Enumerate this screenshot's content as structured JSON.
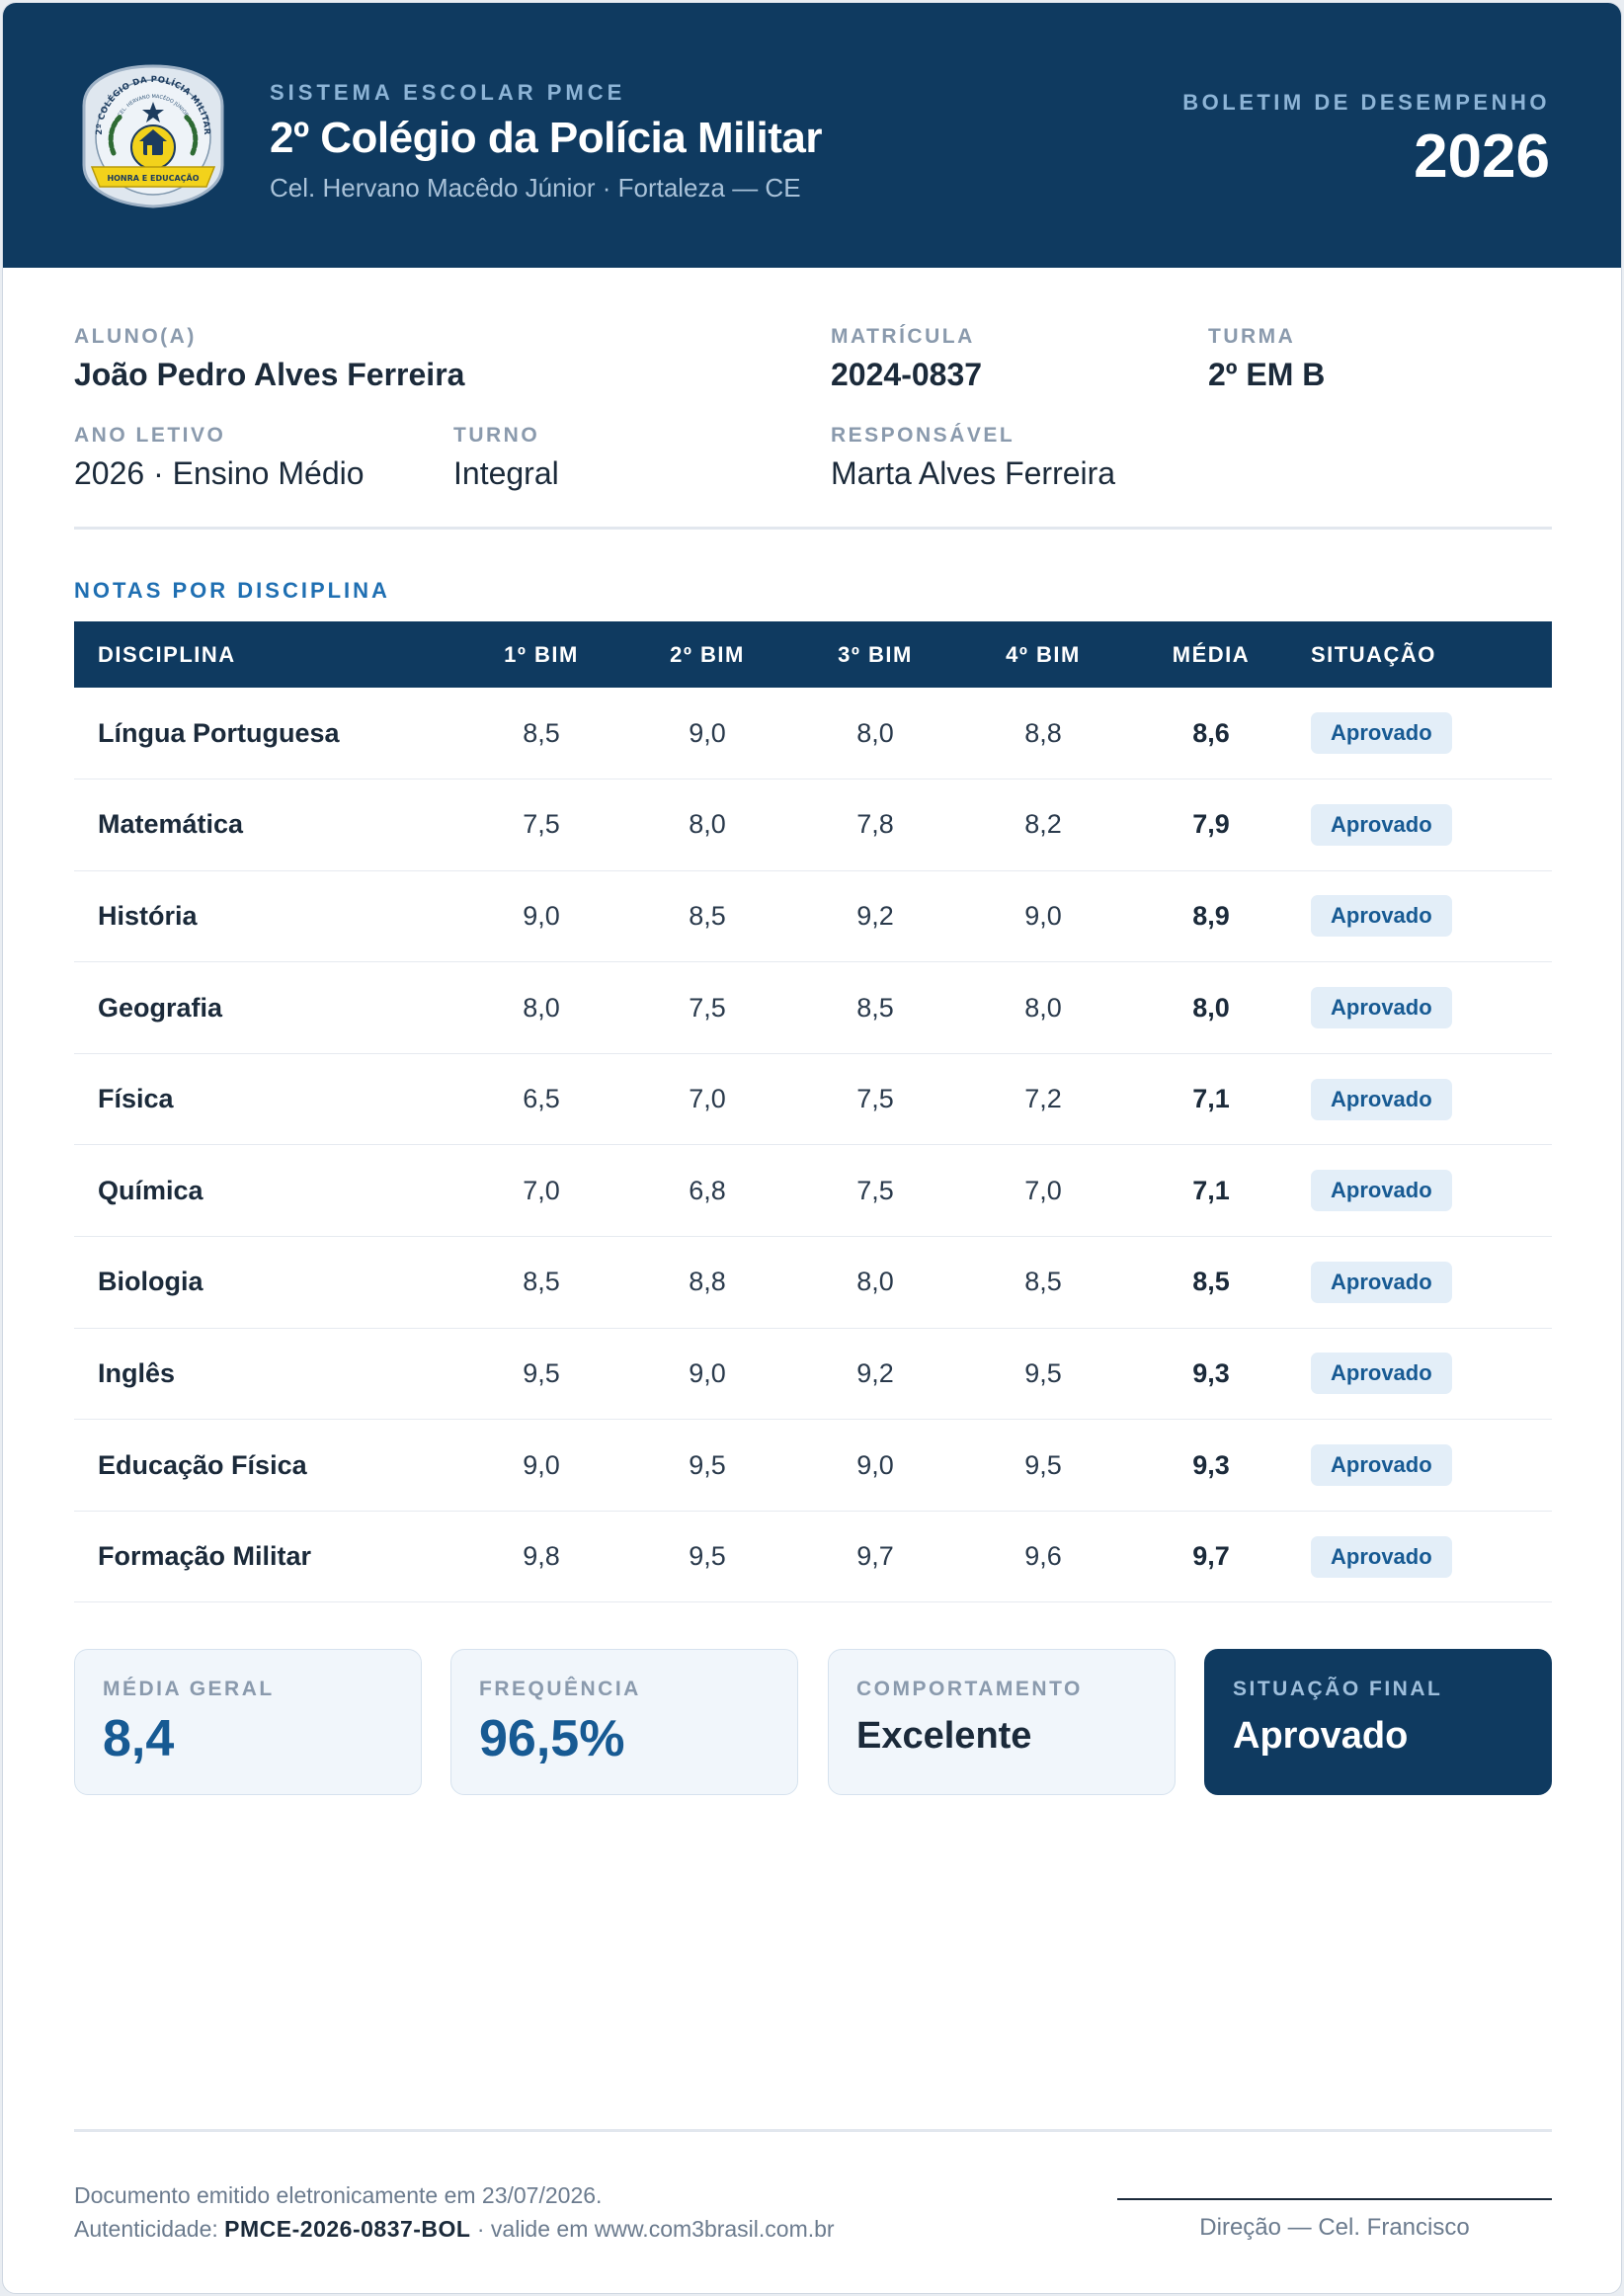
{
  "header": {
    "system_label": "SISTEMA ESCOLAR PMCE",
    "school_name": "2º Colégio da Polícia Militar",
    "school_subtitle": "Cel. Hervano Macêdo Júnior · Fortaleza — CE",
    "report_label": "BOLETIM DE DESEMPENHO",
    "report_year": "2026",
    "crest": {
      "icon": "school-crest",
      "arc_text": "2º COLÉGIO DA POLÍCIA MILITAR",
      "inner_text": "CEL. HERVANO MACÊDO JÚNIOR",
      "ribbon_text": "HONRA E EDUCAÇÃO"
    }
  },
  "student": {
    "name_label": "ALUNO(A)",
    "name": "João Pedro Alves Ferreira",
    "registration_label": "MATRÍCULA",
    "registration": "2024-0837",
    "class_label": "TURMA",
    "class": "2º EM B",
    "year_label": "ANO LETIVO",
    "year": "2026 · Ensino Médio",
    "shift_label": "TURNO",
    "shift": "Integral",
    "guardian_label": "RESPONSÁVEL",
    "guardian": "Marta Alves Ferreira"
  },
  "grades": {
    "section_title": "NOTAS POR DISCIPLINA",
    "headers": [
      "DISCIPLINA",
      "1º BIM",
      "2º BIM",
      "3º BIM",
      "4º BIM",
      "MÉDIA",
      "SITUAÇÃO"
    ],
    "rows": [
      {
        "subject": "Língua Portuguesa",
        "b1": "8,5",
        "b2": "9,0",
        "b3": "8,0",
        "b4": "8,8",
        "avg": "8,6",
        "status": "Aprovado"
      },
      {
        "subject": "Matemática",
        "b1": "7,5",
        "b2": "8,0",
        "b3": "7,8",
        "b4": "8,2",
        "avg": "7,9",
        "status": "Aprovado"
      },
      {
        "subject": "História",
        "b1": "9,0",
        "b2": "8,5",
        "b3": "9,2",
        "b4": "9,0",
        "avg": "8,9",
        "status": "Aprovado"
      },
      {
        "subject": "Geografia",
        "b1": "8,0",
        "b2": "7,5",
        "b3": "8,5",
        "b4": "8,0",
        "avg": "8,0",
        "status": "Aprovado"
      },
      {
        "subject": "Física",
        "b1": "6,5",
        "b2": "7,0",
        "b3": "7,5",
        "b4": "7,2",
        "avg": "7,1",
        "status": "Aprovado"
      },
      {
        "subject": "Química",
        "b1": "7,0",
        "b2": "6,8",
        "b3": "7,5",
        "b4": "7,0",
        "avg": "7,1",
        "status": "Aprovado"
      },
      {
        "subject": "Biologia",
        "b1": "8,5",
        "b2": "8,8",
        "b3": "8,0",
        "b4": "8,5",
        "avg": "8,5",
        "status": "Aprovado"
      },
      {
        "subject": "Inglês",
        "b1": "9,5",
        "b2": "9,0",
        "b3": "9,2",
        "b4": "9,5",
        "avg": "9,3",
        "status": "Aprovado"
      },
      {
        "subject": "Educação Física",
        "b1": "9,0",
        "b2": "9,5",
        "b3": "9,0",
        "b4": "9,5",
        "avg": "9,3",
        "status": "Aprovado"
      },
      {
        "subject": "Formação Militar",
        "b1": "9,8",
        "b2": "9,5",
        "b3": "9,7",
        "b4": "9,6",
        "avg": "9,7",
        "status": "Aprovado"
      }
    ]
  },
  "summary": {
    "average_label": "MÉDIA GERAL",
    "average": "8,4",
    "attendance_label": "FREQUÊNCIA",
    "attendance": "96,5%",
    "behavior_label": "COMPORTAMENTO",
    "behavior": "Excelente",
    "final_label": "SITUAÇÃO FINAL",
    "final": "Aprovado"
  },
  "footer": {
    "issued": "Documento emitido eletronicamente em 23/07/2026.",
    "auth_prefix": "Autenticidade: ",
    "auth_code": "PMCE-2026-0837-BOL",
    "auth_suffix": " · valide em www.com3brasil.com.br",
    "signature": "Direção — Cel. Francisco"
  },
  "colors": {
    "primary": "#0f3a60",
    "accent": "#1f6fb2",
    "badge_bg": "#e3eef8",
    "crest_gold": "#f2d21b"
  }
}
